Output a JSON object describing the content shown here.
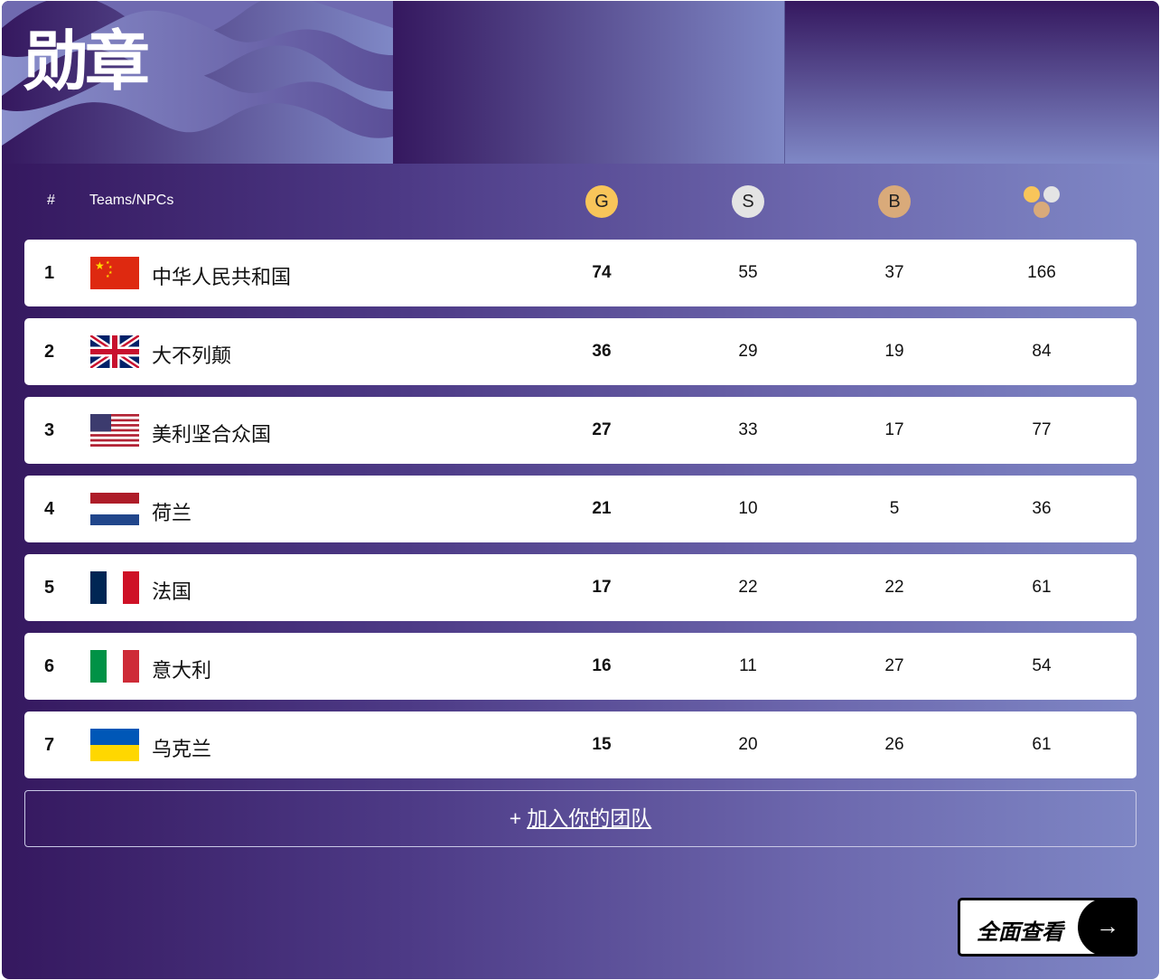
{
  "title": "勋章",
  "header": {
    "rank": "#",
    "team": "Teams/NPCs",
    "gold": "G",
    "silver": "S",
    "bronze": "B"
  },
  "colors": {
    "gold": "#f8c55a",
    "silver": "#e4e4e4",
    "bronze": "#d9aa7a",
    "bg_dark": "#35185f",
    "bg_light": "#7f88c6"
  },
  "rows": [
    {
      "rank": "1",
      "name": "中华人民共和国",
      "flag": "china",
      "gold": "74",
      "silver": "55",
      "bronze": "37",
      "total": "166"
    },
    {
      "rank": "2",
      "name": "大不列颠",
      "flag": "uk",
      "gold": "36",
      "silver": "29",
      "bronze": "19",
      "total": "84"
    },
    {
      "rank": "3",
      "name": "美利坚合众国",
      "flag": "usa",
      "gold": "27",
      "silver": "33",
      "bronze": "17",
      "total": "77"
    },
    {
      "rank": "4",
      "name": "荷兰",
      "flag": "netherlands",
      "gold": "21",
      "silver": "10",
      "bronze": "5",
      "total": "36"
    },
    {
      "rank": "5",
      "name": "法国",
      "flag": "france",
      "gold": "17",
      "silver": "22",
      "bronze": "22",
      "total": "61"
    },
    {
      "rank": "6",
      "name": "意大利",
      "flag": "italy",
      "gold": "16",
      "silver": "11",
      "bronze": "27",
      "total": "54"
    },
    {
      "rank": "7",
      "name": "乌克兰",
      "flag": "ukraine",
      "gold": "15",
      "silver": "20",
      "bronze": "26",
      "total": "61"
    }
  ],
  "add_team": {
    "icon": "plus-icon",
    "label": "加入你的团队"
  },
  "view_all": {
    "label": "全面查看",
    "icon": "arrow-right-icon"
  }
}
